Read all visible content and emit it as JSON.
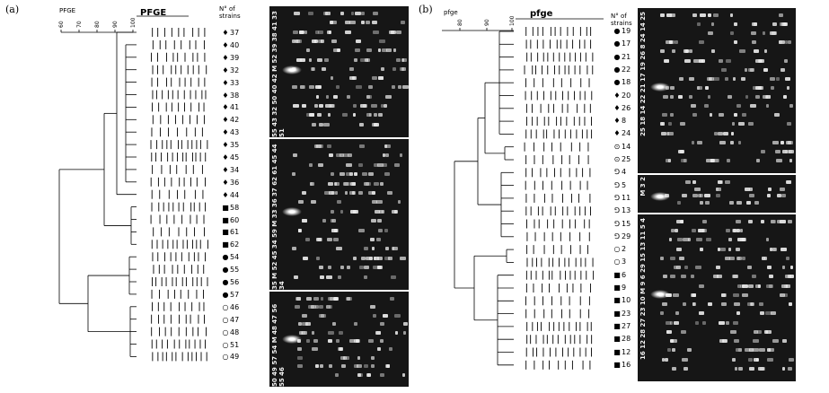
{
  "panel_a": {
    "label": "(a)",
    "title_small": "PFGE",
    "title_big": "PFGE",
    "strain_header": [
      "N° of",
      "strains"
    ],
    "scale_ticks": [
      "60",
      "70",
      "80",
      "90",
      "100"
    ],
    "strains": [
      {
        "sym": "♦",
        "id": "37"
      },
      {
        "sym": "♦",
        "id": "40"
      },
      {
        "sym": "♦",
        "id": "39"
      },
      {
        "sym": "♦",
        "id": "32"
      },
      {
        "sym": "♦",
        "id": "33"
      },
      {
        "sym": "♦",
        "id": "38"
      },
      {
        "sym": "♦",
        "id": "41"
      },
      {
        "sym": "♦",
        "id": "42"
      },
      {
        "sym": "♦",
        "id": "43"
      },
      {
        "sym": "♦",
        "id": "35"
      },
      {
        "sym": "♦",
        "id": "45"
      },
      {
        "sym": "♦",
        "id": "34"
      },
      {
        "sym": "♦",
        "id": "36"
      },
      {
        "sym": "♦",
        "id": "44"
      },
      {
        "sym": "■",
        "id": "58"
      },
      {
        "sym": "■",
        "id": "60"
      },
      {
        "sym": "■",
        "id": "61"
      },
      {
        "sym": "■",
        "id": "62"
      },
      {
        "sym": "●",
        "id": "54"
      },
      {
        "sym": "●",
        "id": "55"
      },
      {
        "sym": "●",
        "id": "56"
      },
      {
        "sym": "●",
        "id": "57"
      },
      {
        "sym": "○",
        "id": "46"
      },
      {
        "sym": "○",
        "id": "47"
      },
      {
        "sym": "○",
        "id": "48"
      },
      {
        "sym": "○",
        "id": "51"
      },
      {
        "sym": "○",
        "id": "49"
      }
    ],
    "gels": [
      {
        "label": "55 43 32 50 40 42 M 52 39 38 41 33 51"
      },
      {
        "label": "35 M 52 45 34 59 M 33 36 37 62 61 45 44 34"
      },
      {
        "label": "50 49 57 54 M 48 47 56 55 46"
      }
    ]
  },
  "panel_b": {
    "label": "(b)",
    "title_small": "pfge",
    "title_big": "pfge",
    "strain_header": [
      "N° of",
      "strains"
    ],
    "scale_ticks": [
      "80",
      "90",
      "100"
    ],
    "strains": [
      {
        "sym": "●",
        "id": "19"
      },
      {
        "sym": "●",
        "id": "17"
      },
      {
        "sym": "●",
        "id": "21"
      },
      {
        "sym": "●",
        "id": "22"
      },
      {
        "sym": "●",
        "id": "18"
      },
      {
        "sym": "♦",
        "id": "20"
      },
      {
        "sym": "♦",
        "id": "26"
      },
      {
        "sym": "♦",
        "id": "8"
      },
      {
        "sym": "♦",
        "id": "24"
      },
      {
        "sym": "⊙",
        "id": "14"
      },
      {
        "sym": "⊙",
        "id": "25"
      },
      {
        "sym": "⅁",
        "id": "4"
      },
      {
        "sym": "⅁",
        "id": "5"
      },
      {
        "sym": "⅁",
        "id": "11"
      },
      {
        "sym": "⅁",
        "id": "13"
      },
      {
        "sym": "⅁",
        "id": "15"
      },
      {
        "sym": "⅁",
        "id": "29"
      },
      {
        "sym": "○",
        "id": "2"
      },
      {
        "sym": "○",
        "id": "3"
      },
      {
        "sym": "■",
        "id": "6"
      },
      {
        "sym": "■",
        "id": "9"
      },
      {
        "sym": "■",
        "id": "10"
      },
      {
        "sym": "■",
        "id": "23"
      },
      {
        "sym": "■",
        "id": "27"
      },
      {
        "sym": "■",
        "id": "28"
      },
      {
        "sym": "■",
        "id": "12"
      },
      {
        "sym": "■",
        "id": "16"
      }
    ],
    "gels": [
      {
        "label": "25 18 14 22 21 17 19 26 8 24 14 25"
      },
      {
        "label": "M 3 2"
      },
      {
        "label": "16 12 28 27 23 10 M 9 6 29 15 13 11 5 4"
      }
    ]
  }
}
